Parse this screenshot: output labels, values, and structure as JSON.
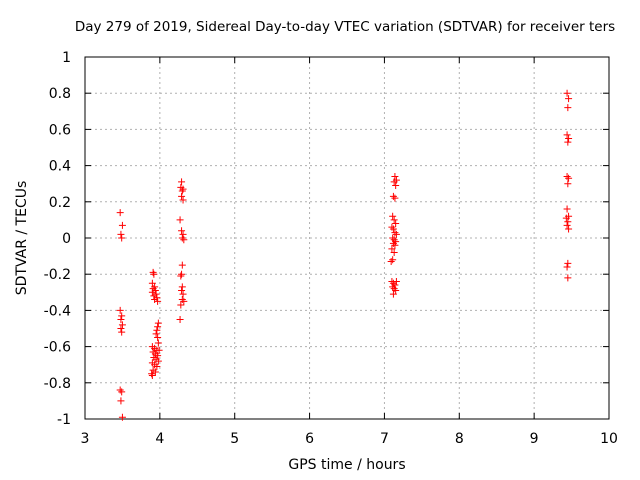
{
  "chart_data": {
    "type": "scatter",
    "title": "Day 279 of 2019, Sidereal Day-to-day VTEC variation (SDTVAR) for receiver ters",
    "xlabel": "GPS time / hours",
    "ylabel": "SDTVAR / TECUs",
    "xlim": [
      3,
      10
    ],
    "ylim": [
      -1,
      1
    ],
    "xticks": [
      "3",
      "4",
      "5",
      "6",
      "7",
      "8",
      "9",
      "10"
    ],
    "yticks": [
      "-1",
      "-0.8",
      "-0.6",
      "-0.4",
      "-0.2",
      "0",
      "0.2",
      "0.4",
      "0.6",
      "0.8",
      "1"
    ],
    "grid": true,
    "marker": "+",
    "color": "#ff0000",
    "series": [
      {
        "points": [
          [
            3.47,
            0.14
          ],
          [
            3.5,
            0.07
          ],
          [
            3.48,
            0.02
          ],
          [
            3.49,
            0.0
          ],
          [
            3.47,
            -0.4
          ],
          [
            3.49,
            -0.43
          ],
          [
            3.48,
            -0.45
          ],
          [
            3.5,
            -0.48
          ],
          [
            3.48,
            -0.5
          ],
          [
            3.49,
            -0.52
          ],
          [
            3.47,
            -0.84
          ],
          [
            3.49,
            -0.85
          ],
          [
            3.48,
            -0.9
          ],
          [
            3.5,
            -0.99
          ],
          [
            3.91,
            -0.19
          ],
          [
            3.92,
            -0.2
          ],
          [
            3.9,
            -0.25
          ],
          [
            3.93,
            -0.27
          ],
          [
            3.91,
            -0.28
          ],
          [
            3.94,
            -0.29
          ],
          [
            3.9,
            -0.3
          ],
          [
            3.95,
            -0.31
          ],
          [
            3.92,
            -0.32
          ],
          [
            3.96,
            -0.33
          ],
          [
            3.93,
            -0.34
          ],
          [
            3.97,
            -0.35
          ],
          [
            3.98,
            -0.47
          ],
          [
            3.97,
            -0.49
          ],
          [
            3.96,
            -0.51
          ],
          [
            3.95,
            -0.53
          ],
          [
            3.97,
            -0.55
          ],
          [
            3.98,
            -0.58
          ],
          [
            3.9,
            -0.6
          ],
          [
            3.93,
            -0.61
          ],
          [
            3.96,
            -0.62
          ],
          [
            3.99,
            -0.62
          ],
          [
            3.91,
            -0.63
          ],
          [
            3.94,
            -0.64
          ],
          [
            3.97,
            -0.65
          ],
          [
            3.92,
            -0.66
          ],
          [
            3.95,
            -0.67
          ],
          [
            3.98,
            -0.68
          ],
          [
            3.9,
            -0.69
          ],
          [
            3.93,
            -0.7
          ],
          [
            3.96,
            -0.71
          ],
          [
            3.91,
            -0.73
          ],
          [
            3.94,
            -0.74
          ],
          [
            3.89,
            -0.75
          ],
          [
            3.9,
            -0.76
          ],
          [
            4.29,
            0.31
          ],
          [
            4.28,
            0.28
          ],
          [
            4.31,
            0.27
          ],
          [
            4.3,
            0.26
          ],
          [
            4.29,
            0.23
          ],
          [
            4.31,
            0.21
          ],
          [
            4.27,
            0.1
          ],
          [
            4.29,
            0.04
          ],
          [
            4.31,
            0.02
          ],
          [
            4.3,
            0.0
          ],
          [
            4.32,
            -0.01
          ],
          [
            4.3,
            -0.15
          ],
          [
            4.29,
            -0.2
          ],
          [
            4.28,
            -0.21
          ],
          [
            4.3,
            -0.27
          ],
          [
            4.29,
            -0.29
          ],
          [
            4.31,
            -0.31
          ],
          [
            4.3,
            -0.34
          ],
          [
            4.32,
            -0.35
          ],
          [
            4.28,
            -0.37
          ],
          [
            4.27,
            -0.45
          ],
          [
            7.14,
            0.34
          ],
          [
            7.16,
            0.32
          ],
          [
            7.13,
            0.31
          ],
          [
            7.15,
            0.29
          ],
          [
            7.12,
            0.23
          ],
          [
            7.14,
            0.22
          ],
          [
            7.11,
            0.12
          ],
          [
            7.13,
            0.1
          ],
          [
            7.15,
            0.08
          ],
          [
            7.1,
            0.06
          ],
          [
            7.12,
            0.05
          ],
          [
            7.14,
            0.03
          ],
          [
            7.16,
            0.02
          ],
          [
            7.11,
            0.0
          ],
          [
            7.13,
            -0.01
          ],
          [
            7.15,
            -0.02
          ],
          [
            7.12,
            -0.03
          ],
          [
            7.14,
            -0.04
          ],
          [
            7.1,
            -0.06
          ],
          [
            7.13,
            -0.08
          ],
          [
            7.11,
            -0.12
          ],
          [
            7.09,
            -0.13
          ],
          [
            7.1,
            -0.24
          ],
          [
            7.12,
            -0.25
          ],
          [
            7.14,
            -0.26
          ],
          [
            7.16,
            -0.24
          ],
          [
            7.11,
            -0.27
          ],
          [
            7.13,
            -0.28
          ],
          [
            7.15,
            -0.29
          ],
          [
            7.12,
            -0.31
          ],
          [
            9.44,
            0.8
          ],
          [
            9.46,
            0.77
          ],
          [
            9.45,
            0.72
          ],
          [
            9.44,
            0.57
          ],
          [
            9.46,
            0.55
          ],
          [
            9.45,
            0.53
          ],
          [
            9.44,
            0.34
          ],
          [
            9.46,
            0.33
          ],
          [
            9.45,
            0.3
          ],
          [
            9.44,
            0.16
          ],
          [
            9.46,
            0.12
          ],
          [
            9.43,
            0.11
          ],
          [
            9.45,
            0.09
          ],
          [
            9.44,
            0.07
          ],
          [
            9.46,
            0.05
          ],
          [
            9.45,
            -0.14
          ],
          [
            9.44,
            -0.16
          ],
          [
            9.45,
            -0.22
          ]
        ]
      }
    ]
  }
}
